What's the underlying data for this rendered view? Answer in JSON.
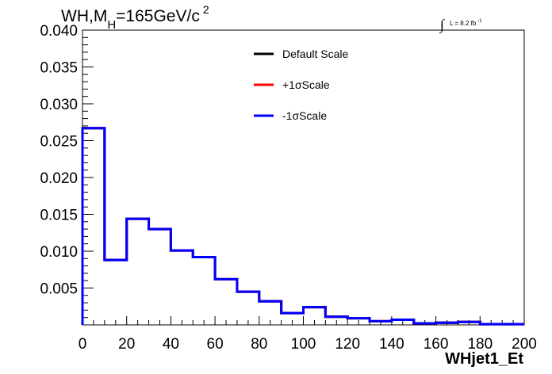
{
  "chart_data": {
    "type": "line",
    "title_parts": {
      "main": "WH,M",
      "sub": "H",
      "rest": "=165GeV/c",
      "sup": "2"
    },
    "lumi_parts": {
      "integral": "∫",
      "text": "L = 8.2 fb",
      "sup": "-1"
    },
    "xlabel": "WHjet1_Et",
    "ylabel": "",
    "xlim": [
      0,
      200
    ],
    "ylim": [
      0,
      0.04
    ],
    "x_ticks": [
      "0",
      "20",
      "40",
      "60",
      "80",
      "100",
      "120",
      "140",
      "160",
      "180",
      "200"
    ],
    "y_ticks": [
      "0.005",
      "0.010",
      "0.015",
      "0.020",
      "0.025",
      "0.030",
      "0.035",
      "0.040"
    ],
    "bin_edges": [
      0,
      10,
      20,
      30,
      40,
      50,
      60,
      70,
      80,
      90,
      100,
      110,
      120,
      130,
      140,
      150,
      160,
      170,
      180,
      190,
      200
    ],
    "legend_position": "top-center",
    "series": [
      {
        "name": "Default Scale",
        "color": "#000000",
        "values": [
          0.0267,
          0.0088,
          0.0144,
          0.013,
          0.0101,
          0.0092,
          0.0062,
          0.0045,
          0.0032,
          0.0016,
          0.0024,
          0.0011,
          0.0009,
          0.0005,
          0.0007,
          0.0002,
          0.0003,
          0.0004,
          0.0001,
          0.0001
        ]
      },
      {
        "name": "+1σScale",
        "color": "#ff0000",
        "values": [
          0.0267,
          0.0088,
          0.0144,
          0.013,
          0.0101,
          0.0092,
          0.0062,
          0.0045,
          0.0032,
          0.0016,
          0.0024,
          0.0011,
          0.0009,
          0.0005,
          0.0007,
          0.0002,
          0.0003,
          0.0004,
          0.0001,
          0.0001
        ]
      },
      {
        "name": "-1σScale",
        "color": "#0000ff",
        "values": [
          0.0267,
          0.0088,
          0.0144,
          0.013,
          0.0101,
          0.0092,
          0.0062,
          0.0045,
          0.0032,
          0.0016,
          0.0024,
          0.0011,
          0.0009,
          0.0005,
          0.0007,
          0.0002,
          0.0003,
          0.0004,
          0.0001,
          0.0001
        ]
      }
    ]
  }
}
